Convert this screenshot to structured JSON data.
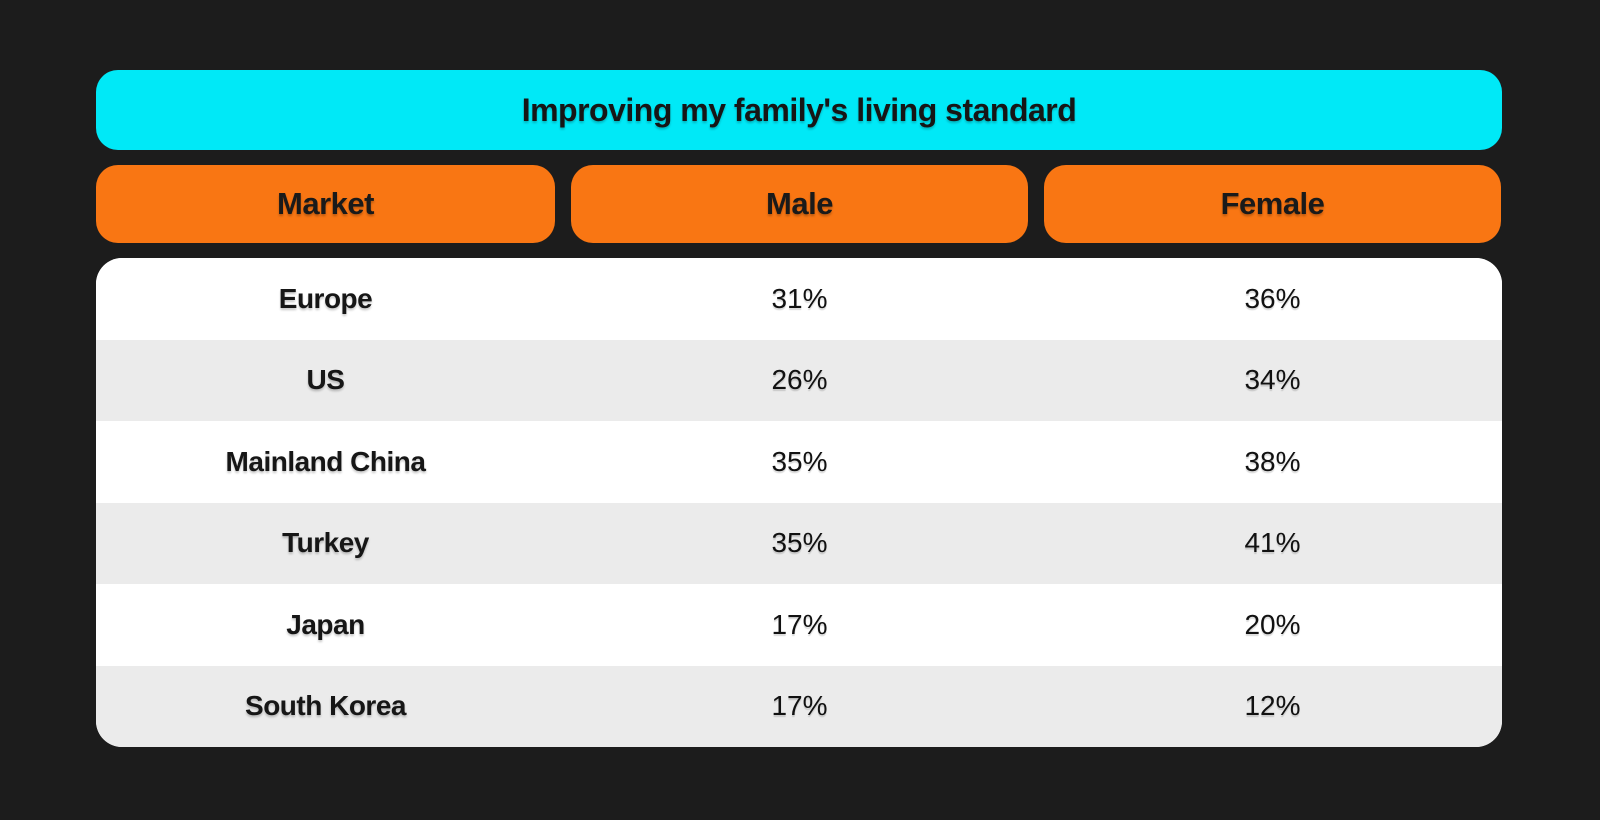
{
  "table": {
    "title": "Improving my family's living standard",
    "columns": [
      "Market",
      "Male",
      "Female"
    ],
    "rows": [
      {
        "market": "Europe",
        "male": "31%",
        "female": "36%"
      },
      {
        "market": "US",
        "male": "26%",
        "female": "34%"
      },
      {
        "market": "Mainland China",
        "male": "35%",
        "female": "38%"
      },
      {
        "market": "Turkey",
        "male": "35%",
        "female": "41%"
      },
      {
        "market": "Japan",
        "male": "17%",
        "female": "20%"
      },
      {
        "market": "South Korea",
        "male": "17%",
        "female": "12%"
      }
    ]
  },
  "chart_data": {
    "type": "table",
    "title": "Improving my family's living standard",
    "columns": [
      "Market",
      "Male",
      "Female"
    ],
    "rows": [
      {
        "market": "Europe",
        "male_pct": 31,
        "female_pct": 36
      },
      {
        "market": "US",
        "male_pct": 26,
        "female_pct": 34
      },
      {
        "market": "Mainland China",
        "male_pct": 35,
        "female_pct": 38
      },
      {
        "market": "Turkey",
        "male_pct": 35,
        "female_pct": 41
      },
      {
        "market": "Japan",
        "male_pct": 17,
        "female_pct": 20
      },
      {
        "market": "South Korea",
        "male_pct": 17,
        "female_pct": 12
      }
    ]
  },
  "colors": {
    "background": "#1C1C1C",
    "title_bg": "#00E9F7",
    "header_bg": "#F97613",
    "row_base": "#FFFFFF",
    "row_alt": "#EBEBEB",
    "text": "#161616"
  }
}
